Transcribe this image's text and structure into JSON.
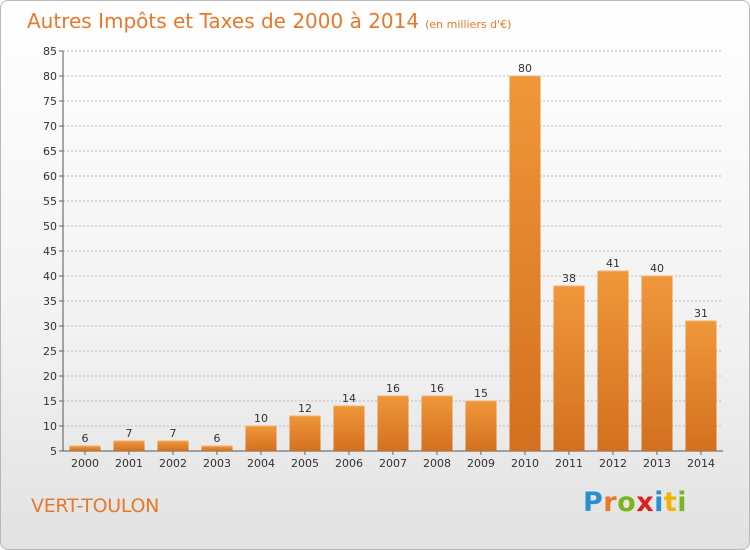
{
  "title": "Autres Impôts et Taxes de 2000 à 2014",
  "subtitle": "(en milliers d'€)",
  "commune": "VERT-TOULON",
  "logo": {
    "text": "Proxiti",
    "letters": [
      "P",
      "r",
      "o",
      "x",
      "i",
      "t",
      "i"
    ]
  },
  "colors": {
    "bar": "#f0973a",
    "bar_dark": "#d3701f",
    "title": "#e8782a",
    "grid": "#bbbbbb"
  },
  "chart_data": {
    "type": "bar",
    "categories": [
      "2000",
      "2001",
      "2002",
      "2003",
      "2004",
      "2005",
      "2006",
      "2007",
      "2008",
      "2009",
      "2010",
      "2011",
      "2012",
      "2013",
      "2014"
    ],
    "values": [
      6,
      7,
      7,
      6,
      10,
      12,
      14,
      16,
      16,
      15,
      80,
      38,
      41,
      40,
      31
    ],
    "ylim": [
      5,
      85
    ],
    "yticks": [
      5,
      10,
      15,
      20,
      25,
      30,
      35,
      40,
      45,
      50,
      55,
      60,
      65,
      70,
      75,
      80,
      85
    ],
    "grid": true,
    "data_labels": true
  }
}
